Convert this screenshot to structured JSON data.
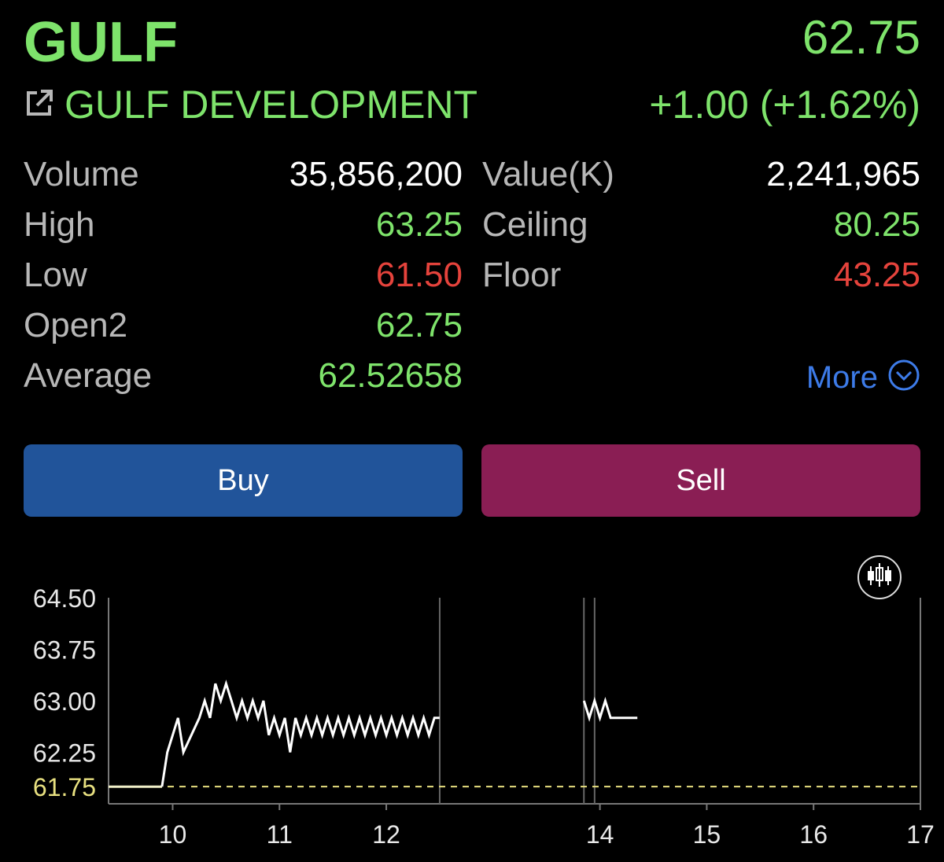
{
  "quote": {
    "symbol": "GULF",
    "company_name": "GULF DEVELOPMENT",
    "last_price": "62.75",
    "change": "+1.00 (+1.62%)"
  },
  "stats": {
    "volume_label": "Volume",
    "volume": "35,856,200",
    "value_label": "Value(K)",
    "value": "2,241,965",
    "high_label": "High",
    "high": "63.25",
    "ceiling_label": "Ceiling",
    "ceiling": "80.25",
    "low_label": "Low",
    "low": "61.50",
    "floor_label": "Floor",
    "floor": "43.25",
    "open2_label": "Open2",
    "open2": "62.75",
    "average_label": "Average",
    "average": "62.52658",
    "more_label": "More"
  },
  "actions": {
    "buy_label": "Buy",
    "sell_label": "Sell"
  },
  "colors": {
    "up": "#7ee36b",
    "down": "#e5433c",
    "buy": "#21549a",
    "sell": "#8a1e54",
    "link": "#3d7be8",
    "prior_close_line": "#e8e080"
  },
  "icons": {
    "external_link": "external-link-icon",
    "more": "chevron-down-circle-icon",
    "chart_toggle": "candlestick-icon"
  },
  "chart_data": {
    "type": "line",
    "title": "",
    "xlabel": "",
    "ylabel": "",
    "xlim": [
      9.4,
      17
    ],
    "ylim": [
      61.5,
      64.5
    ],
    "y_ticks": [
      "64.50",
      "63.75",
      "63.00",
      "62.25"
    ],
    "reference_line": {
      "value": 61.75,
      "label": "61.75"
    },
    "x_ticks": [
      {
        "value": 10,
        "label": "10"
      },
      {
        "value": 11,
        "label": "11"
      },
      {
        "value": 12,
        "label": "12"
      },
      {
        "value": 14,
        "label": "14"
      },
      {
        "value": 15,
        "label": "15"
      },
      {
        "value": 16,
        "label": "16"
      },
      {
        "value": 17,
        "label": "17"
      }
    ],
    "session_dividers": [
      12.5,
      13.85,
      13.95
    ],
    "series": [
      {
        "values": [
          [
            9.4,
            61.75
          ],
          [
            9.9,
            61.75
          ],
          [
            9.95,
            62.25
          ],
          [
            10.05,
            62.75
          ],
          [
            10.1,
            62.25
          ],
          [
            10.25,
            62.75
          ],
          [
            10.3,
            63.0
          ],
          [
            10.35,
            62.75
          ],
          [
            10.4,
            63.25
          ],
          [
            10.45,
            63.0
          ],
          [
            10.5,
            63.25
          ],
          [
            10.55,
            63.0
          ],
          [
            10.6,
            62.75
          ],
          [
            10.65,
            63.0
          ],
          [
            10.7,
            62.75
          ],
          [
            10.75,
            63.0
          ],
          [
            10.8,
            62.75
          ],
          [
            10.85,
            63.0
          ],
          [
            10.9,
            62.5
          ],
          [
            10.95,
            62.75
          ],
          [
            11.0,
            62.5
          ],
          [
            11.05,
            62.75
          ],
          [
            11.1,
            62.25
          ],
          [
            11.15,
            62.75
          ],
          [
            11.2,
            62.5
          ],
          [
            11.25,
            62.75
          ],
          [
            11.3,
            62.5
          ],
          [
            11.35,
            62.75
          ],
          [
            11.4,
            62.5
          ],
          [
            11.45,
            62.75
          ],
          [
            11.5,
            62.5
          ],
          [
            11.55,
            62.75
          ],
          [
            11.6,
            62.5
          ],
          [
            11.65,
            62.75
          ],
          [
            11.7,
            62.5
          ],
          [
            11.75,
            62.75
          ],
          [
            11.8,
            62.5
          ],
          [
            11.85,
            62.75
          ],
          [
            11.9,
            62.5
          ],
          [
            11.95,
            62.75
          ],
          [
            12.0,
            62.5
          ],
          [
            12.05,
            62.75
          ],
          [
            12.1,
            62.5
          ],
          [
            12.15,
            62.75
          ],
          [
            12.2,
            62.5
          ],
          [
            12.25,
            62.75
          ],
          [
            12.3,
            62.5
          ],
          [
            12.35,
            62.75
          ],
          [
            12.4,
            62.5
          ],
          [
            12.45,
            62.75
          ],
          [
            12.5,
            62.75
          ]
        ]
      },
      {
        "values": [
          [
            13.85,
            63.0
          ],
          [
            13.9,
            62.75
          ],
          [
            13.95,
            63.0
          ],
          [
            14.0,
            62.75
          ],
          [
            14.05,
            63.0
          ],
          [
            14.1,
            62.75
          ],
          [
            14.15,
            62.75
          ],
          [
            14.35,
            62.75
          ]
        ]
      }
    ]
  }
}
